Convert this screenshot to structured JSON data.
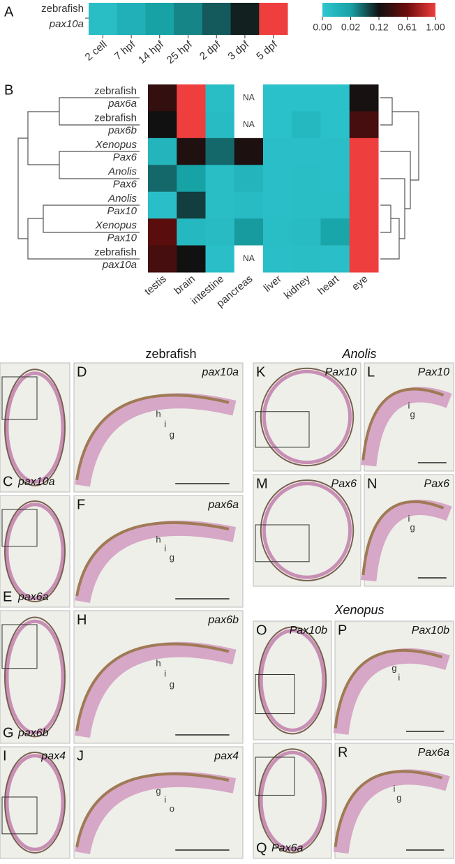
{
  "panel_a": {
    "letter": "A",
    "row_label": [
      "zebrafish",
      "pax10a"
    ],
    "categories": [
      "2 cell",
      "7 hpf",
      "14 hpf",
      "25 hpf",
      "2 dpf",
      "3 dpf",
      "5 dpf"
    ],
    "values": [
      0.005,
      0.012,
      0.02,
      0.04,
      0.07,
      0.11,
      1.0
    ]
  },
  "colorbar": {
    "ticks": [
      {
        "value": 0,
        "label": "0.00"
      },
      0.02,
      0.12,
      0.61,
      {
        "value": 1,
        "label": "1.00"
      }
    ],
    "colors": [
      "#2fc6d1",
      "#17a2a6",
      "#111111",
      "#6e0c0c",
      "#ef3e3e"
    ]
  },
  "panel_b": {
    "letter": "B",
    "na_label": "NA",
    "rows": [
      [
        "zebrafish",
        "pax6a"
      ],
      [
        "zebrafish",
        "pax6b"
      ],
      [
        "Xenopus",
        "Pax6"
      ],
      [
        "Anolis",
        "Pax6"
      ],
      [
        "Anolis",
        "Pax10"
      ],
      [
        "Xenopus",
        "Pax10"
      ],
      [
        "zebrafish",
        "pax10a"
      ]
    ],
    "columns": [
      "testis",
      "brain",
      "intestine",
      "pancreas",
      "liver",
      "kidney",
      "heart",
      "eye"
    ],
    "values": [
      [
        0.3,
        1.0,
        0.005,
        null,
        0.003,
        0.003,
        0.003,
        0.15
      ],
      [
        0.12,
        1.0,
        0.006,
        null,
        0.003,
        0.008,
        0.003,
        0.4
      ],
      [
        0.01,
        0.2,
        0.06,
        0.18,
        0.004,
        0.004,
        0.004,
        1.0
      ],
      [
        0.06,
        0.02,
        0.005,
        0.01,
        0.004,
        0.005,
        0.004,
        1.0
      ],
      [
        0.004,
        0.09,
        0.005,
        0.006,
        0.004,
        0.005,
        0.005,
        1.0
      ],
      [
        0.5,
        0.008,
        0.006,
        0.025,
        0.005,
        0.006,
        0.018,
        1.0
      ],
      [
        0.4,
        0.12,
        0.004,
        null,
        0.004,
        0.005,
        0.004,
        1.0
      ]
    ]
  },
  "headings": [
    "zebrafish",
    "Anolis",
    "Xenopus"
  ],
  "panels": [
    {
      "letter": "C",
      "gene": "pax10a"
    },
    {
      "letter": "D",
      "gene": "pax10a",
      "layers": [
        "h",
        "i",
        "g"
      ]
    },
    {
      "letter": "E",
      "gene": "pax6a"
    },
    {
      "letter": "F",
      "gene": "pax6a",
      "layers": [
        "h",
        "i",
        "g"
      ]
    },
    {
      "letter": "G",
      "gene": "pax6b"
    },
    {
      "letter": "H",
      "gene": "pax6b",
      "layers": [
        "h",
        "i",
        "g"
      ]
    },
    {
      "letter": "I",
      "gene": "pax4"
    },
    {
      "letter": "J",
      "gene": "pax4",
      "layers": [
        "g",
        "i",
        "o"
      ]
    },
    {
      "letter": "K",
      "gene": "Pax10"
    },
    {
      "letter": "L",
      "gene": "Pax10",
      "layers": [
        "i",
        "g"
      ]
    },
    {
      "letter": "M",
      "gene": "Pax6"
    },
    {
      "letter": "N",
      "gene": "Pax6",
      "layers": [
        "i",
        "g"
      ]
    },
    {
      "letter": "O",
      "gene": "Pax10b"
    },
    {
      "letter": "P",
      "gene": "Pax10b",
      "layers": [
        "g",
        "i"
      ]
    },
    {
      "letter": "Q",
      "gene": "Pax6a"
    },
    {
      "letter": "R",
      "gene": "Pax6a",
      "layers": [
        "i",
        "g"
      ]
    }
  ]
}
